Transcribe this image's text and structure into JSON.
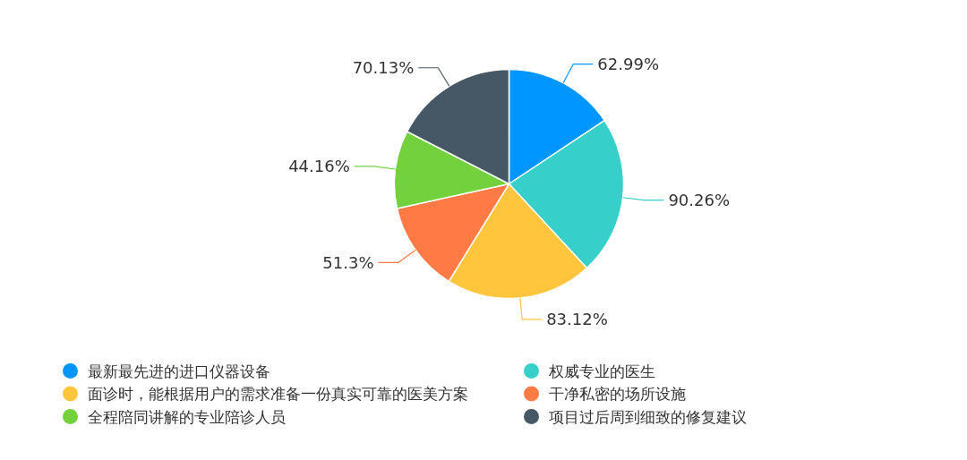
{
  "chart_data": {
    "type": "pie",
    "categories": [
      "最新最先进的进口仪器设备",
      "权威专业的医生",
      "面诊时，能根据用户的需求准备一份真实可靠的医美方案",
      "干净私密的场所设施",
      "全程陪同讲解的专业陪诊人员",
      "项目过后周到细致的修复建议"
    ],
    "values": [
      62.99,
      90.26,
      83.12,
      51.3,
      44.16,
      70.13
    ],
    "colors": [
      "#0096ff",
      "#36cfc9",
      "#ffc53d",
      "#ff7a45",
      "#73d13d",
      "#465866"
    ],
    "value_labels": [
      "62.99%",
      "90.26%",
      "83.12%",
      "51.3%",
      "44.16%",
      "70.13%"
    ],
    "legend": "bottom"
  }
}
